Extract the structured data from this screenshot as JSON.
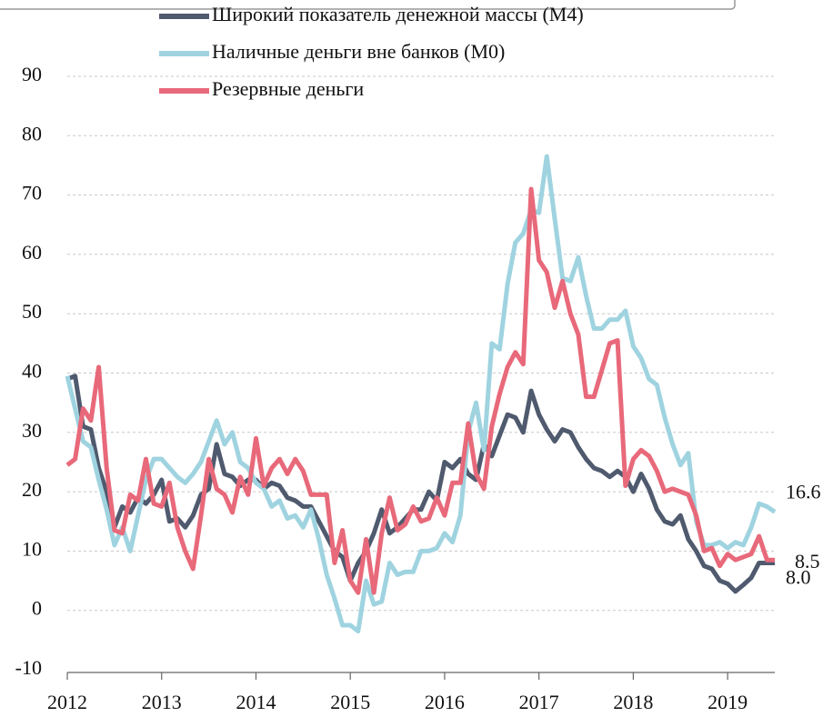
{
  "chart_data": {
    "type": "line",
    "x": [
      2012,
      2012.083,
      2012.167,
      2012.25,
      2012.333,
      2012.417,
      2012.5,
      2012.583,
      2012.667,
      2012.75,
      2012.833,
      2012.917,
      2013,
      2013.083,
      2013.167,
      2013.25,
      2013.333,
      2013.417,
      2013.5,
      2013.583,
      2013.667,
      2013.75,
      2013.833,
      2013.917,
      2014,
      2014.083,
      2014.167,
      2014.25,
      2014.333,
      2014.417,
      2014.5,
      2014.583,
      2014.667,
      2014.75,
      2014.833,
      2014.917,
      2015,
      2015.083,
      2015.167,
      2015.25,
      2015.333,
      2015.417,
      2015.5,
      2015.583,
      2015.667,
      2015.75,
      2015.833,
      2015.917,
      2016,
      2016.083,
      2016.167,
      2016.25,
      2016.333,
      2016.417,
      2016.5,
      2016.583,
      2016.667,
      2016.75,
      2016.833,
      2016.917,
      2017,
      2017.083,
      2017.167,
      2017.25,
      2017.333,
      2017.417,
      2017.5,
      2017.583,
      2017.667,
      2017.75,
      2017.833,
      2017.917,
      2018,
      2018.083,
      2018.167,
      2018.25,
      2018.333,
      2018.417,
      2018.5,
      2018.583,
      2018.667,
      2018.75,
      2018.833,
      2018.917,
      2019,
      2019.083,
      2019.167,
      2019.25,
      2019.333,
      2019.417,
      2019.5
    ],
    "series": [
      {
        "name": "Широкий показатель денежной массы (M4)",
        "color": "#505a6e",
        "label_color": "#333333",
        "last_value_label": "8.0",
        "values": [
          39,
          39.5,
          31,
          30.5,
          24,
          20,
          14,
          17.5,
          16.5,
          19,
          18,
          19.5,
          22,
          15,
          15.5,
          14,
          16,
          19.5,
          20.5,
          28,
          23,
          22.5,
          21,
          22,
          22,
          20.5,
          21.5,
          21,
          19,
          18.5,
          17.5,
          17.5,
          15,
          12.5,
          10,
          9,
          5,
          8,
          10,
          13,
          17,
          13,
          14,
          15.5,
          17,
          17,
          20,
          18.5,
          25,
          24,
          25.5,
          23,
          22,
          28,
          26,
          29.5,
          33,
          32.5,
          30,
          37,
          33,
          30.5,
          28.5,
          30.5,
          30,
          27.5,
          25.5,
          24,
          23.5,
          22.5,
          23.5,
          22.5,
          20,
          23,
          20.5,
          17,
          15,
          14.5,
          16,
          12,
          10,
          7.5,
          7,
          5,
          4.5,
          3.2,
          4.3,
          5.5,
          8,
          8,
          8
        ]
      },
      {
        "name": "Наличные деньги вне банков (M0)",
        "color": "#9fd3e0",
        "label_color": "#2aa8d4",
        "last_value_label": "16.6",
        "values": [
          39.5,
          34,
          28.5,
          27.5,
          22,
          17,
          11,
          14,
          10,
          16,
          22,
          25.5,
          25.5,
          24,
          22.5,
          21.5,
          23,
          25,
          28.5,
          32,
          28,
          30,
          25,
          24,
          21.5,
          20.5,
          17.5,
          18.5,
          15.5,
          16,
          14,
          17,
          12,
          6,
          2,
          -2.5,
          -2.5,
          -3.5,
          5,
          1,
          1.5,
          8,
          6,
          6.5,
          6.5,
          10,
          10,
          10.5,
          13,
          11.5,
          16,
          30,
          35,
          27,
          45,
          44,
          55,
          62,
          63.5,
          67.5,
          67,
          76.5,
          66,
          56,
          55.5,
          59.5,
          53,
          47.5,
          47.5,
          49,
          49,
          50.5,
          44.5,
          42.5,
          39,
          38,
          32.5,
          28,
          24.5,
          26.5,
          15,
          11,
          11,
          11.5,
          10.5,
          11.5,
          11,
          14,
          18,
          17.5,
          16.6
        ]
      },
      {
        "name": "Резервные деньги",
        "color": "#e8697a",
        "label_color": "#e8404f",
        "last_value_label": "8.5",
        "values": [
          24.5,
          25.5,
          34,
          32,
          41,
          24,
          13.5,
          13,
          19.5,
          18.5,
          25.5,
          18,
          17.5,
          21.5,
          14,
          10,
          7,
          16,
          25.5,
          20.5,
          19.5,
          16.5,
          22.5,
          19.5,
          29,
          21,
          24,
          25.5,
          23,
          25.5,
          23.5,
          19.5,
          19.5,
          19.5,
          8,
          13.5,
          5,
          3,
          12,
          3,
          13,
          19,
          13.5,
          14.5,
          17.5,
          15,
          15.5,
          19,
          16,
          21.5,
          21.5,
          31.5,
          23,
          20.5,
          31,
          36.5,
          41,
          43.5,
          41.5,
          71,
          59,
          57,
          51,
          55.5,
          50,
          46.5,
          36,
          36,
          40.5,
          45,
          45.5,
          21,
          25.5,
          27,
          26,
          23.5,
          20,
          20.5,
          20,
          19.5,
          16,
          10,
          10.5,
          7.5,
          9.5,
          8.5,
          9,
          9.5,
          12.5,
          8.5,
          8.5
        ]
      }
    ],
    "xlim": [
      2012,
      2019.5
    ],
    "xticks": [
      2012,
      2013,
      2014,
      2015,
      2016,
      2017,
      2018,
      2019
    ],
    "ylim": [
      -10,
      90
    ],
    "yticks": [
      -10,
      0,
      10,
      20,
      30,
      40,
      50,
      60,
      70,
      80,
      90
    ],
    "grid": true
  }
}
